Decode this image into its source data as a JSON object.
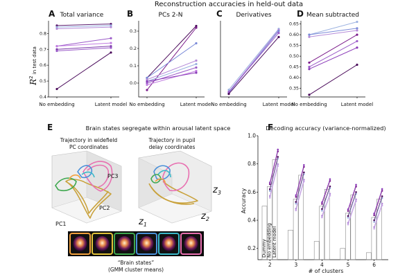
{
  "figure": {
    "top_title": "Reconstruction accuracies in held-out data",
    "ylabel_r2": "R",
    "ylabel_r2_sup": "2",
    "ylabel_r2_rest": " in test data",
    "panel_labels": {
      "a": "A",
      "b": "B",
      "c": "C",
      "d": "D",
      "e": "E",
      "f": "F"
    },
    "x_categories": [
      "No embedding",
      "Latent model"
    ]
  },
  "panel_e": {
    "title": "Brain states segregate within arousal latent space",
    "left_caption_1": "Trajectory in widefield",
    "left_caption_2": "PC coordinates",
    "right_caption_1": "Trajectory in pupil",
    "right_caption_2": "delay coordinates",
    "axis_pc1": "PC1",
    "axis_pc2": "PC2",
    "axis_pc3": "PC3",
    "axis_z1": "z",
    "axis_z2": "z",
    "axis_z3": "z",
    "sub_1": "1",
    "sub_2": "2",
    "sub_3": "3",
    "states_caption_1": "“Brain states”",
    "states_caption_2": "(GMM cluster means)",
    "state_colors": [
      "#f2a03c",
      "#e3c43a",
      "#3fa84f",
      "#4a90d9",
      "#3bb9c9",
      "#e86fb0"
    ],
    "trajectory_colors": {
      "gold": "#c9a23c",
      "pink": "#e86fb0",
      "blue": "#4a90d9",
      "teal": "#3bb9c9",
      "green": "#3fa84f",
      "orange": "#f2a03c"
    }
  },
  "chart_data": [
    {
      "panel": "A",
      "type": "line",
      "title": "Total variance",
      "categories": [
        "No embedding",
        "Latent model"
      ],
      "ylim": [
        0.4,
        0.88
      ],
      "yticks": [
        "0.4",
        "0.5",
        "0.6",
        "0.7",
        "0.8"
      ],
      "series": [
        {
          "values": [
            0.85,
            0.86
          ],
          "color": "#5a1a6e"
        },
        {
          "values": [
            0.84,
            0.85
          ],
          "color": "#9ab0e0"
        },
        {
          "values": [
            0.83,
            0.84
          ],
          "color": "#b48ad8"
        },
        {
          "values": [
            0.72,
            0.77
          ],
          "color": "#9a5ac8"
        },
        {
          "values": [
            0.72,
            0.74
          ],
          "color": "#c07ae0"
        },
        {
          "values": [
            0.7,
            0.72
          ],
          "color": "#7a3aa8"
        },
        {
          "values": [
            0.69,
            0.71
          ],
          "color": "#9a5ac8"
        },
        {
          "values": [
            0.45,
            0.68
          ],
          "color": "#4a0a5a"
        }
      ]
    },
    {
      "panel": "B",
      "type": "line",
      "title": "PCs 2-N",
      "categories": [
        "No embedding",
        "Latent model"
      ],
      "ylim": [
        -0.08,
        0.36
      ],
      "yticks": [
        "0.0",
        "0.1",
        "0.2",
        "0.3"
      ],
      "series": [
        {
          "values": [
            0.03,
            0.33
          ],
          "color": "#4a0a5a"
        },
        {
          "values": [
            -0.04,
            0.32
          ],
          "color": "#7a1a8a"
        },
        {
          "values": [
            0.03,
            0.23
          ],
          "color": "#7a8ad8"
        },
        {
          "values": [
            0.02,
            0.13
          ],
          "color": "#b48ad8"
        },
        {
          "values": [
            0.01,
            0.11
          ],
          "color": "#9ab0e0"
        },
        {
          "values": [
            0.0,
            0.09
          ],
          "color": "#9a5ac8"
        },
        {
          "values": [
            -0.01,
            0.07
          ],
          "color": "#c07ae0"
        },
        {
          "values": [
            0.01,
            0.06
          ],
          "color": "#8a3ab8"
        }
      ]
    },
    {
      "panel": "C",
      "type": "line",
      "title": "Derivatives",
      "categories": [
        "No embedding",
        "Latent model"
      ],
      "ylim": [
        -0.05,
        0.7
      ],
      "yticks": [],
      "series": [
        {
          "values": [
            0.02,
            0.62
          ],
          "color": "#9ab0e0"
        },
        {
          "values": [
            0.0,
            0.61
          ],
          "color": "#b48ad8"
        },
        {
          "values": [
            -0.01,
            0.6
          ],
          "color": "#7a8ad8"
        },
        {
          "values": [
            0.0,
            0.58
          ],
          "color": "#9a5ac8"
        },
        {
          "values": [
            -0.02,
            0.54
          ],
          "color": "#4a0a5a"
        }
      ]
    },
    {
      "panel": "D",
      "type": "line",
      "title": "Mean subtracted",
      "categories": [
        "No embedding",
        "Latent model"
      ],
      "ylim": [
        0.31,
        0.665
      ],
      "yticks": [
        "0.35",
        "0.40",
        "0.45",
        "0.50",
        "0.55",
        "0.60",
        "0.65"
      ],
      "series": [
        {
          "values": [
            0.6,
            0.66
          ],
          "color": "#9ab0e0"
        },
        {
          "values": [
            0.6,
            0.63
          ],
          "color": "#7a8ad8"
        },
        {
          "values": [
            0.59,
            0.62
          ],
          "color": "#b48ad8"
        },
        {
          "values": [
            0.47,
            0.6
          ],
          "color": "#7a1a8a"
        },
        {
          "values": [
            0.45,
            0.57
          ],
          "color": "#9a5ac8"
        },
        {
          "values": [
            0.44,
            0.54
          ],
          "color": "#8a3ab8"
        },
        {
          "values": [
            0.32,
            0.46
          ],
          "color": "#4a0a5a"
        }
      ]
    },
    {
      "panel": "F",
      "type": "bar",
      "title": "Decoding accuracy (variance-normalized)",
      "xlabel": "# of clusters",
      "ylabel": "Accuracy",
      "categories": [
        "2",
        "3",
        "4",
        "5",
        "6"
      ],
      "ylim": [
        0.12,
        1.0
      ],
      "yticks": [
        "0.2",
        "0.4",
        "0.6",
        "0.8",
        "1.0"
      ],
      "bar_labels": [
        "Dummy",
        "No embedding",
        "Latent model"
      ],
      "series": [
        {
          "name": "Dummy",
          "values": [
            0.5,
            0.33,
            0.25,
            0.2,
            0.17
          ]
        },
        {
          "name": "No embedding",
          "values": [
            0.64,
            0.55,
            0.5,
            0.45,
            0.42
          ]
        },
        {
          "name": "Latent model",
          "values": [
            0.83,
            0.72,
            0.62,
            0.58,
            0.55
          ]
        }
      ]
    }
  ]
}
